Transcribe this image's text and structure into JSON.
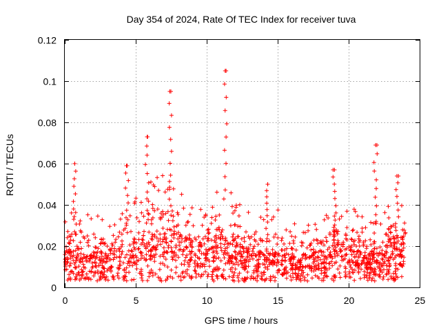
{
  "chart_data": {
    "type": "scatter",
    "title": "Day 354 of 2024, Rate Of TEC Index for receiver tuva",
    "xlabel": "GPS time / hours",
    "ylabel": "ROTI / TECUs",
    "xlim": [
      0,
      25
    ],
    "ylim": [
      0,
      0.12
    ],
    "xticks": [
      0,
      5,
      10,
      15,
      20,
      25
    ],
    "xtick_labels": [
      "0",
      "5",
      "10",
      "15",
      "20",
      "25"
    ],
    "yticks": [
      0,
      0.02,
      0.04,
      0.06,
      0.08,
      0.1,
      0.12
    ],
    "ytick_labels": [
      "0",
      "0.02",
      "0.04",
      "0.06",
      "0.08",
      "0.1",
      "0.12"
    ],
    "grid": true,
    "marker": "+",
    "marker_color": "#ff0000",
    "series": [
      {
        "name": "ROTI",
        "x_range": [
          0,
          24
        ],
        "baseline_band": [
          0.003,
          0.035
        ],
        "typical_level": 0.015,
        "notable_peaks": [
          {
            "x": 0.7,
            "y": 0.06
          },
          {
            "x": 4.4,
            "y": 0.059
          },
          {
            "x": 5.8,
            "y": 0.073
          },
          {
            "x": 7.4,
            "y": 0.095
          },
          {
            "x": 11.3,
            "y": 0.105
          },
          {
            "x": 14.3,
            "y": 0.05
          },
          {
            "x": 19.0,
            "y": 0.057
          },
          {
            "x": 21.9,
            "y": 0.069
          },
          {
            "x": 23.4,
            "y": 0.054
          }
        ],
        "activity_profile": [
          {
            "x": 0,
            "level": 0.017
          },
          {
            "x": 1,
            "level": 0.02
          },
          {
            "x": 2,
            "level": 0.018
          },
          {
            "x": 3,
            "level": 0.017
          },
          {
            "x": 4,
            "level": 0.02
          },
          {
            "x": 5,
            "level": 0.022
          },
          {
            "x": 6,
            "level": 0.026
          },
          {
            "x": 7,
            "level": 0.028
          },
          {
            "x": 8,
            "level": 0.026
          },
          {
            "x": 9,
            "level": 0.022
          },
          {
            "x": 10,
            "level": 0.02
          },
          {
            "x": 11,
            "level": 0.026
          },
          {
            "x": 12,
            "level": 0.022
          },
          {
            "x": 13,
            "level": 0.019
          },
          {
            "x": 14,
            "level": 0.018
          },
          {
            "x": 15,
            "level": 0.019
          },
          {
            "x": 16,
            "level": 0.016
          },
          {
            "x": 17,
            "level": 0.016
          },
          {
            "x": 18,
            "level": 0.018
          },
          {
            "x": 19,
            "level": 0.02
          },
          {
            "x": 20,
            "level": 0.021
          },
          {
            "x": 21,
            "level": 0.017
          },
          {
            "x": 22,
            "level": 0.017
          },
          {
            "x": 23,
            "level": 0.022
          },
          {
            "x": 24,
            "level": 0.02
          }
        ]
      }
    ]
  }
}
